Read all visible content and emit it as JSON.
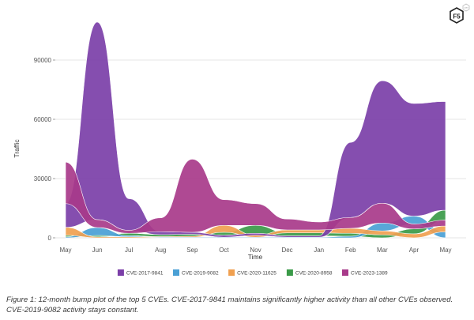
{
  "chart_data": {
    "type": "area",
    "subtype": "stream / bump area",
    "title": "",
    "xlabel": "Time",
    "ylabel": "Traffic",
    "ylim": [
      0,
      110000
    ],
    "yticks": [
      0,
      30000,
      60000,
      90000
    ],
    "ytick_labels": [
      "0",
      "30000",
      "60000",
      "90000"
    ],
    "grid": true,
    "categories": [
      "May",
      "Jun",
      "Jul",
      "Aug",
      "Sep",
      "Oct",
      "Nov",
      "Dec",
      "Jan",
      "Feb",
      "Mar",
      "Apr",
      "May"
    ],
    "legend_position": "bottom",
    "series": [
      {
        "name": "CVE-2020-8958",
        "color": "#3a9a48",
        "values": [
          800,
          700,
          1200,
          1000,
          1000,
          1500,
          4000,
          1500,
          1500,
          1500,
          1500,
          2500,
          5000
        ]
      },
      {
        "name": "CVE-2019-9082",
        "color": "#4aa0d5",
        "values": [
          500,
          4000,
          600,
          300,
          300,
          300,
          300,
          300,
          300,
          800,
          4000,
          4000,
          3000
        ]
      },
      {
        "name": "CVE-2020-11625",
        "color": "#f0a050",
        "values": [
          4000,
          500,
          500,
          300,
          500,
          3500,
          1000,
          1500,
          1500,
          2500,
          2000,
          2000,
          3000
        ]
      },
      {
        "name": "CVE-2017-9841",
        "color": "#7b3fa8",
        "values": [
          12000,
          100000,
          16000,
          1500,
          1000,
          1000,
          1000,
          700,
          700,
          38000,
          62000,
          57000,
          55000
        ]
      },
      {
        "name": "CVE-2023-1389",
        "color": "#a83a8a",
        "values": [
          21000,
          4000,
          1500,
          7000,
          37000,
          13000,
          11000,
          5500,
          4000,
          5500,
          10000,
          2500,
          3000
        ]
      }
    ],
    "legend_order": [
      "CVE-2017-9841",
      "CVE-2019-9082",
      "CVE-2020-11625",
      "CVE-2020-8958",
      "CVE-2023-1389"
    ]
  },
  "legend_colors": {
    "CVE-2017-9841": "#7b3fa8",
    "CVE-2019-9082": "#4aa0d5",
    "CVE-2020-11625": "#f0a050",
    "CVE-2020-8958": "#3a9a48",
    "CVE-2023-1389": "#a83a8a"
  },
  "caption": {
    "line1": "Figure 1: 12-month bump plot of the top 5 CVEs. CVE-2017-9841 maintains significantly higher activity than all other CVEs observed.",
    "line2": "CVE-2019-9082 activity stays constant."
  },
  "logo": {
    "text": "F5",
    "badge_text": "LABS"
  }
}
